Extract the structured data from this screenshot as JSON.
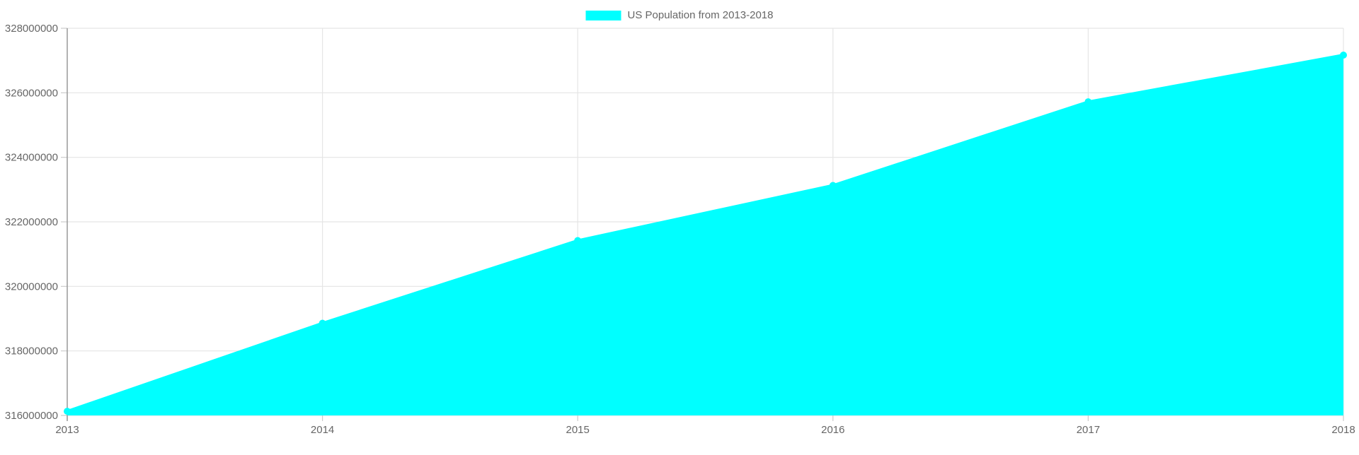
{
  "legend": {
    "label": "US Population from 2013-2018"
  },
  "chart_data": {
    "type": "area",
    "title": "US Population from 2013-2018",
    "x": [
      2013,
      2014,
      2015,
      2016,
      2017,
      2018
    ],
    "x_tick_labels": [
      "2013",
      "2014",
      "2015",
      "2016",
      "2017",
      "2018"
    ],
    "series": [
      {
        "name": "US Population from 2013-2018",
        "values": [
          316128839,
          318857056,
          321418820,
          323127513,
          325719178,
          327167434
        ],
        "color": "#00ffff"
      }
    ],
    "y_ticks": [
      316000000,
      318000000,
      320000000,
      322000000,
      324000000,
      326000000,
      328000000
    ],
    "y_tick_labels": [
      "316000000",
      "318000000",
      "320000000",
      "322000000",
      "324000000",
      "326000000",
      "328000000"
    ],
    "ylim": [
      316000000,
      328000000
    ],
    "xlabel": "",
    "ylabel": "",
    "grid": true,
    "legend_position": "top-center",
    "colors": {
      "background": "#ffffff",
      "grid": "#e5e5e5",
      "tick_mark": "#cccccc",
      "axis": "#999999",
      "tick_text": "#666666"
    }
  }
}
